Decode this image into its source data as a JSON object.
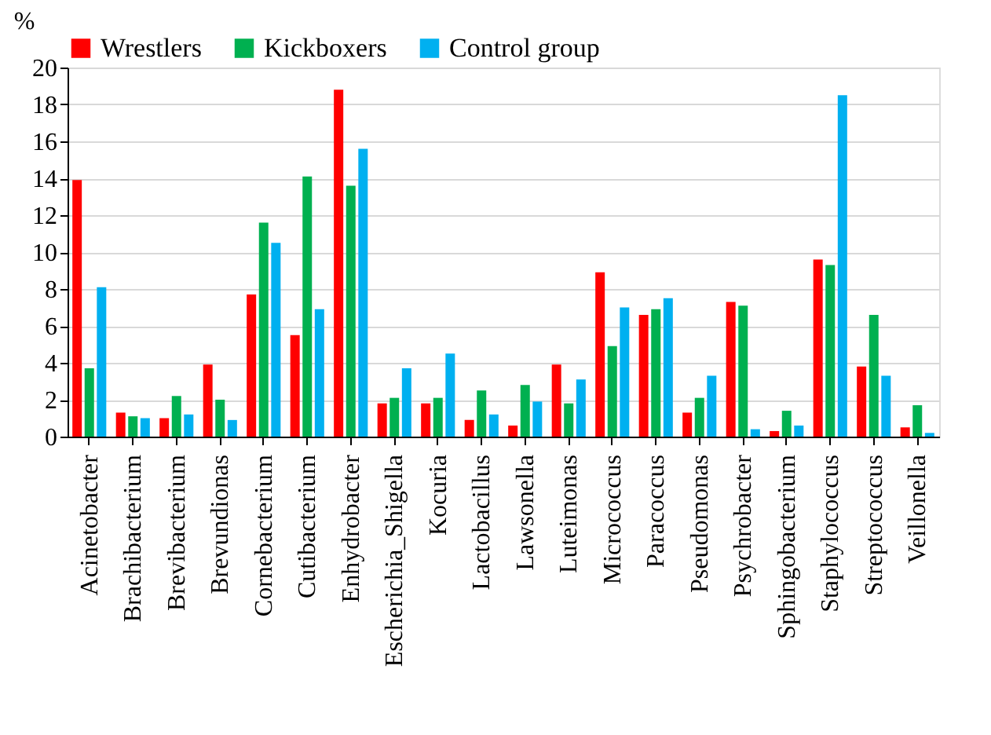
{
  "chart_data": {
    "type": "bar",
    "ylabel": "%",
    "categories": [
      "Acinetobacter",
      "Brachibacterium",
      "Brevibacterium",
      "Brevundionas",
      "Cornebacterium",
      "Cutibacterium",
      "Enhydrobacter",
      "Escherichia_Shigella",
      "Kocuria",
      "Lactobacillus",
      "Lawsonella",
      "Luteimonas",
      "Micrococcus",
      "Paracoccus",
      "Pseudomonas",
      "Psychrobacter",
      "Sphingobacterium",
      "Staphylococcus",
      "Streptococcus",
      "Veillonella"
    ],
    "series": [
      {
        "name": "Wrestlers",
        "color": "#ff0000",
        "values": [
          13.9,
          1.3,
          1.0,
          3.9,
          7.7,
          5.5,
          18.8,
          1.8,
          1.8,
          0.9,
          0.6,
          3.9,
          8.9,
          6.6,
          1.3,
          7.3,
          0.3,
          9.6,
          3.8,
          0.5
        ]
      },
      {
        "name": "Kickboxers",
        "color": "#00b050",
        "values": [
          3.7,
          1.1,
          2.2,
          2.0,
          11.6,
          14.1,
          13.6,
          2.1,
          2.1,
          2.5,
          2.8,
          1.8,
          4.9,
          6.9,
          2.1,
          7.1,
          1.4,
          9.3,
          6.6,
          1.7
        ]
      },
      {
        "name": "Control group",
        "color": "#00b0f0",
        "values": [
          8.1,
          1.0,
          1.2,
          0.9,
          10.5,
          6.9,
          15.6,
          3.7,
          4.5,
          1.2,
          1.9,
          3.1,
          7.0,
          7.5,
          3.3,
          0.4,
          0.6,
          18.5,
          3.3,
          0.2
        ]
      }
    ],
    "ylim": [
      0,
      20
    ],
    "yticks": [
      0,
      2,
      4,
      6,
      8,
      10,
      12,
      14,
      16,
      18,
      20
    ],
    "grid": "y",
    "legend": "top"
  }
}
